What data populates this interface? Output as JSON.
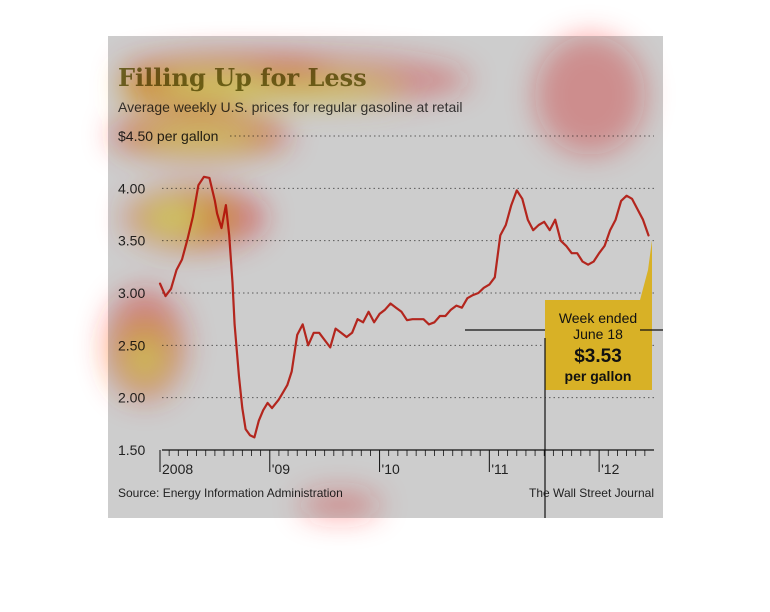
{
  "colors": {
    "panel": "#cdcdcd",
    "line": "#b3261e",
    "callout": "#d8b126",
    "grid": "#5a5a5a",
    "heat_core": "#ffff66",
    "heat_mid": "#ffa500",
    "heat_outer": "#ff2020"
  },
  "chart_data": {
    "type": "line",
    "title": "Filling Up for Less",
    "subtitle": "Average weekly U.S. prices for regular gasoline at retail",
    "source": "Source: Energy Information Administration",
    "credit": "The Wall Street Journal",
    "ylim": [
      1.5,
      4.5
    ],
    "xlim": [
      2008.0,
      2012.5
    ],
    "grid": true,
    "y_ticks": [
      {
        "value": 4.5,
        "label": "$4.50 per gallon"
      },
      {
        "value": 4.0,
        "label": "4.00"
      },
      {
        "value": 3.5,
        "label": "3.50"
      },
      {
        "value": 3.0,
        "label": "3.00"
      },
      {
        "value": 2.5,
        "label": "2.50"
      },
      {
        "value": 2.0,
        "label": "2.00"
      },
      {
        "value": 1.5,
        "label": "1.50"
      }
    ],
    "x_ticks": [
      {
        "value": 2008.0,
        "label": "2008"
      },
      {
        "value": 2009.0,
        "label": "'09"
      },
      {
        "value": 2010.0,
        "label": "'10"
      },
      {
        "value": 2011.0,
        "label": "'11"
      },
      {
        "value": 2012.0,
        "label": "'12"
      }
    ],
    "series": [
      {
        "x": [
          2008.0,
          2008.05,
          2008.1,
          2008.15,
          2008.2,
          2008.25,
          2008.3,
          2008.35,
          2008.4,
          2008.45,
          2008.5,
          2008.52,
          2008.56,
          2008.6,
          2008.63,
          2008.66,
          2008.68,
          2008.72,
          2008.75,
          2008.78,
          2008.82,
          2008.86,
          2008.9,
          2008.94,
          2008.98,
          2009.02,
          2009.08,
          2009.12,
          2009.16,
          2009.2,
          2009.25,
          2009.3,
          2009.35,
          2009.4,
          2009.45,
          2009.5,
          2009.55,
          2009.6,
          2009.65,
          2009.7,
          2009.75,
          2009.8,
          2009.85,
          2009.9,
          2009.95,
          2010.0,
          2010.05,
          2010.1,
          2010.15,
          2010.2,
          2010.25,
          2010.3,
          2010.35,
          2010.4,
          2010.45,
          2010.5,
          2010.55,
          2010.6,
          2010.65,
          2010.7,
          2010.75,
          2010.8,
          2010.85,
          2010.9,
          2010.95,
          2011.0,
          2011.05,
          2011.1,
          2011.15,
          2011.2,
          2011.25,
          2011.3,
          2011.35,
          2011.4,
          2011.45,
          2011.5,
          2011.55,
          2011.6,
          2011.65,
          2011.7,
          2011.75,
          2011.8,
          2011.85,
          2011.9,
          2011.95,
          2012.0,
          2012.05,
          2012.1,
          2012.15,
          2012.2,
          2012.25,
          2012.3,
          2012.35,
          2012.4,
          2012.45
        ],
        "values": [
          3.09,
          2.97,
          3.04,
          3.22,
          3.32,
          3.51,
          3.73,
          4.03,
          4.11,
          4.1,
          3.88,
          3.76,
          3.62,
          3.84,
          3.55,
          3.1,
          2.7,
          2.2,
          1.9,
          1.7,
          1.64,
          1.62,
          1.78,
          1.88,
          1.95,
          1.9,
          1.98,
          2.05,
          2.12,
          2.25,
          2.6,
          2.7,
          2.5,
          2.62,
          2.62,
          2.55,
          2.48,
          2.66,
          2.62,
          2.58,
          2.62,
          2.75,
          2.72,
          2.82,
          2.72,
          2.8,
          2.84,
          2.9,
          2.86,
          2.82,
          2.74,
          2.75,
          2.75,
          2.75,
          2.7,
          2.72,
          2.78,
          2.78,
          2.84,
          2.88,
          2.86,
          2.95,
          2.98,
          3.0,
          3.05,
          3.08,
          3.15,
          3.55,
          3.65,
          3.84,
          3.98,
          3.9,
          3.7,
          3.6,
          3.65,
          3.68,
          3.6,
          3.7,
          3.5,
          3.45,
          3.38,
          3.38,
          3.3,
          3.27,
          3.3,
          3.38,
          3.45,
          3.6,
          3.7,
          3.88,
          3.93,
          3.9,
          3.8,
          3.7,
          3.55
        ]
      }
    ],
    "annotation": {
      "line1": "Week ended",
      "line2": "June 18",
      "price": "$3.53",
      "unit": "per gallon"
    }
  }
}
